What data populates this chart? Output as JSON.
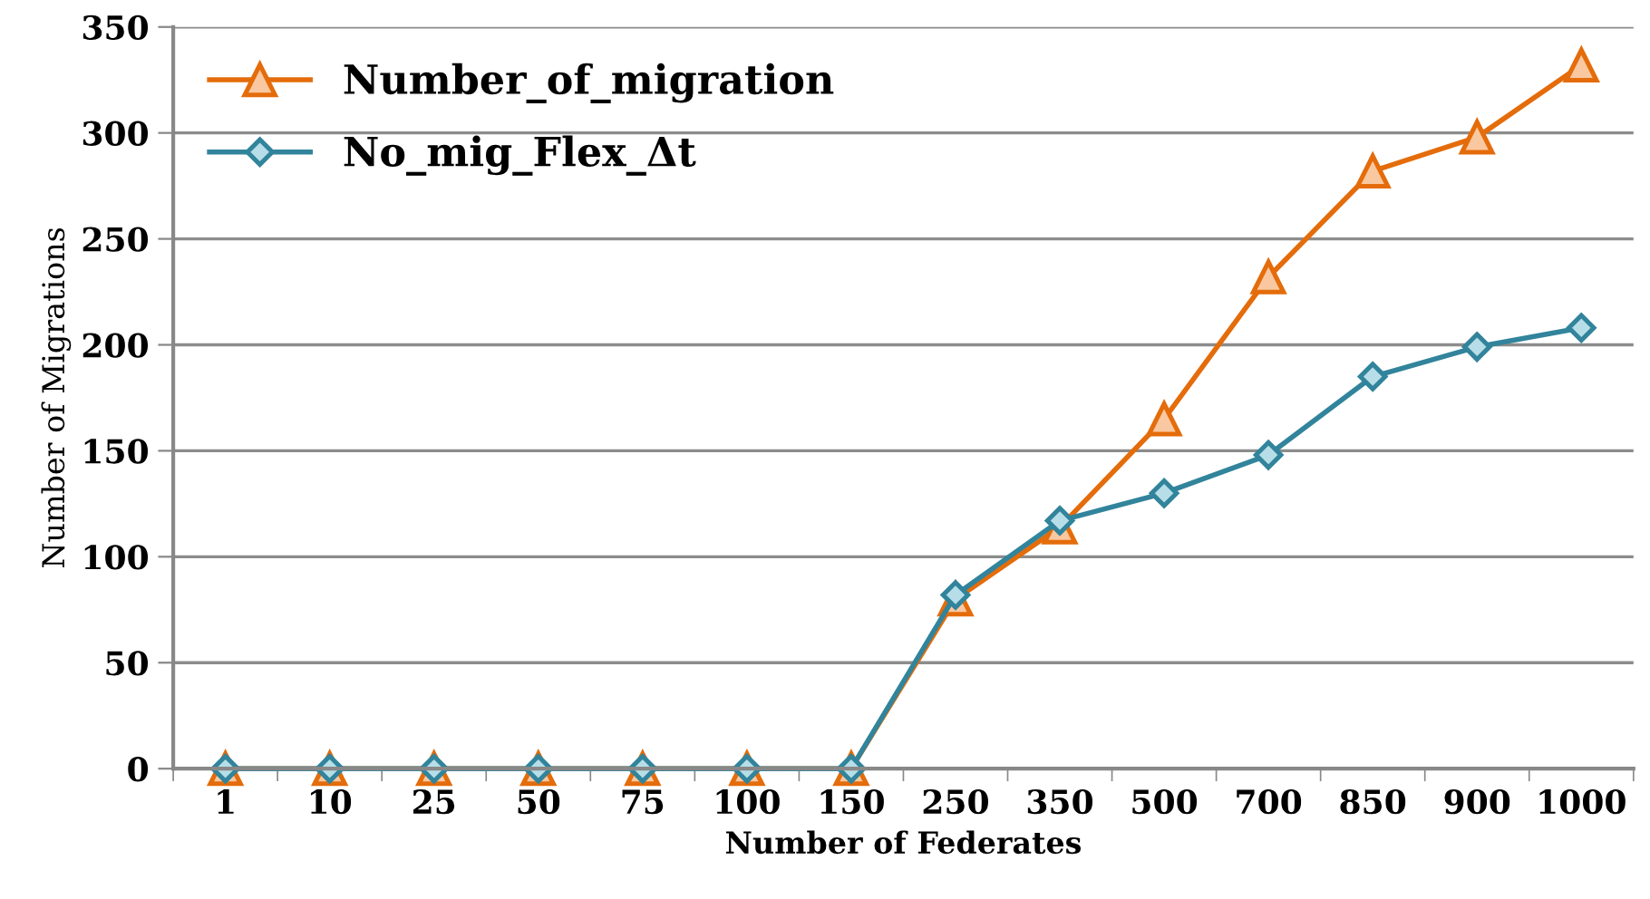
{
  "chart_data": {
    "type": "line",
    "xlabel": "Number of Federates",
    "ylabel": "Number of Migrations",
    "categories": [
      "1",
      "10",
      "25",
      "50",
      "75",
      "100",
      "150",
      "250",
      "350",
      "500",
      "700",
      "850",
      "900",
      "1000"
    ],
    "series": [
      {
        "name": "Number_of_migration",
        "color": "#e46c0a",
        "marker": "triangle",
        "values": [
          0,
          0,
          0,
          0,
          0,
          0,
          0,
          80,
          114,
          165,
          232,
          282,
          298,
          332
        ]
      },
      {
        "name": "No_mig_Flex_Δt",
        "color": "#31849b",
        "marker": "diamond",
        "values": [
          0,
          0,
          0,
          0,
          0,
          0,
          0,
          82,
          117,
          130,
          148,
          185,
          199,
          208
        ]
      }
    ],
    "ylim": [
      0,
      350
    ],
    "yticks": [
      0,
      50,
      100,
      150,
      200,
      250,
      300,
      350
    ],
    "grid": "y",
    "legend": "top left",
    "line_style": "solid"
  }
}
